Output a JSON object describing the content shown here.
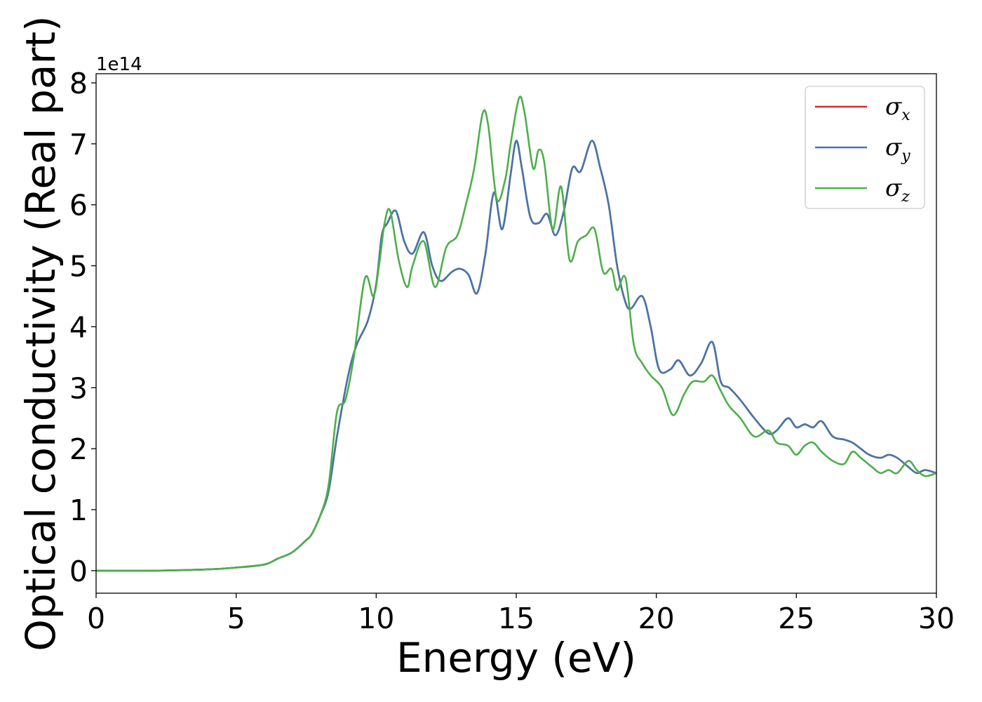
{
  "chart_data": {
    "type": "line",
    "title": "",
    "xlabel": "Energy (eV)",
    "ylabel": "Optical conductivity (Real part)",
    "y_offset_label": "1e14",
    "xlim": [
      0,
      30
    ],
    "ylim": [
      -0.37,
      8.15
    ],
    "x_ticks": [
      0,
      5,
      10,
      15,
      20,
      25,
      30
    ],
    "x_tick_labels": [
      "0",
      "5",
      "10",
      "15",
      "20",
      "25",
      "30"
    ],
    "y_ticks": [
      0,
      1,
      2,
      3,
      4,
      5,
      6,
      7,
      8
    ],
    "y_tick_labels": [
      "0",
      "1",
      "2",
      "3",
      "4",
      "5",
      "6",
      "7",
      "8"
    ],
    "grid": false,
    "legend_position": "top-right",
    "series": [
      {
        "name": "σx",
        "legend_symbol": "σ",
        "legend_subscript": "x",
        "color": "#d62728",
        "x": [
          0,
          2,
          4,
          5,
          6,
          6.5,
          7,
          7.5,
          7.7,
          8,
          8.3,
          8.6,
          9,
          9.3,
          9.7,
          10,
          10.2,
          10.4,
          10.7,
          11,
          11.3,
          11.7,
          12,
          12.3,
          12.7,
          13,
          13.3,
          13.6,
          13.9,
          14.2,
          14.5,
          14.8,
          15,
          15.2,
          15.5,
          15.8,
          16.1,
          16.4,
          16.7,
          17,
          17.3,
          17.7,
          18,
          18.3,
          18.6,
          18.9,
          19.1,
          19.5,
          19.8,
          20.1,
          20.5,
          20.8,
          21.2,
          21.6,
          22,
          22.3,
          22.6,
          23,
          23.5,
          24,
          24.3,
          24.7,
          25,
          25.3,
          25.6,
          25.9,
          26.3,
          26.7,
          27,
          27.3,
          27.6,
          28,
          28.3,
          28.6,
          29,
          29.3,
          29.6,
          30
        ],
        "y": [
          0,
          0,
          0.02,
          0.05,
          0.1,
          0.2,
          0.3,
          0.5,
          0.6,
          0.9,
          1.3,
          2.2,
          3.2,
          3.7,
          4.1,
          4.7,
          5.5,
          5.7,
          5.9,
          5.4,
          5.2,
          5.55,
          5.0,
          4.75,
          4.9,
          4.95,
          4.85,
          4.55,
          5.2,
          6.2,
          5.6,
          6.5,
          7.05,
          6.6,
          5.8,
          5.7,
          5.85,
          5.5,
          5.9,
          6.6,
          6.55,
          7.05,
          6.6,
          6.0,
          5.0,
          4.4,
          4.3,
          4.5,
          4.0,
          3.3,
          3.3,
          3.45,
          3.2,
          3.4,
          3.75,
          3.1,
          3.0,
          2.8,
          2.5,
          2.25,
          2.3,
          2.5,
          2.35,
          2.4,
          2.35,
          2.45,
          2.2,
          2.15,
          2.1,
          2.0,
          1.9,
          1.85,
          1.9,
          1.85,
          1.7,
          1.6,
          1.65,
          1.6
        ]
      },
      {
        "name": "σy",
        "legend_symbol": "σ",
        "legend_subscript": "y",
        "color": "#4477aa",
        "x": [
          0,
          2,
          4,
          5,
          6,
          6.5,
          7,
          7.5,
          7.7,
          8,
          8.3,
          8.6,
          9,
          9.3,
          9.7,
          10,
          10.2,
          10.4,
          10.7,
          11,
          11.3,
          11.7,
          12,
          12.3,
          12.7,
          13,
          13.3,
          13.6,
          13.9,
          14.2,
          14.5,
          14.8,
          15,
          15.2,
          15.5,
          15.8,
          16.1,
          16.4,
          16.7,
          17,
          17.3,
          17.7,
          18,
          18.3,
          18.6,
          18.9,
          19.1,
          19.5,
          19.8,
          20.1,
          20.5,
          20.8,
          21.2,
          21.6,
          22,
          22.3,
          22.6,
          23,
          23.5,
          24,
          24.3,
          24.7,
          25,
          25.3,
          25.6,
          25.9,
          26.3,
          26.7,
          27,
          27.3,
          27.6,
          28,
          28.3,
          28.6,
          29,
          29.3,
          29.6,
          30
        ],
        "y": [
          0,
          0,
          0.02,
          0.05,
          0.1,
          0.2,
          0.3,
          0.5,
          0.6,
          0.9,
          1.3,
          2.2,
          3.2,
          3.7,
          4.1,
          4.7,
          5.5,
          5.7,
          5.9,
          5.4,
          5.2,
          5.55,
          5.0,
          4.75,
          4.9,
          4.95,
          4.85,
          4.55,
          5.2,
          6.2,
          5.6,
          6.5,
          7.05,
          6.6,
          5.8,
          5.7,
          5.85,
          5.5,
          5.9,
          6.6,
          6.55,
          7.05,
          6.6,
          6.0,
          5.0,
          4.4,
          4.3,
          4.5,
          4.0,
          3.3,
          3.3,
          3.45,
          3.2,
          3.4,
          3.75,
          3.1,
          3.0,
          2.8,
          2.5,
          2.25,
          2.3,
          2.5,
          2.35,
          2.4,
          2.35,
          2.45,
          2.2,
          2.15,
          2.1,
          2.0,
          1.9,
          1.85,
          1.9,
          1.85,
          1.7,
          1.6,
          1.65,
          1.6
        ]
      },
      {
        "name": "σz",
        "legend_symbol": "σ",
        "legend_subscript": "z",
        "color": "#4daf4a",
        "x": [
          0,
          2,
          4,
          5,
          6,
          6.5,
          7,
          7.5,
          7.7,
          8,
          8.3,
          8.6,
          8.9,
          9.2,
          9.6,
          9.9,
          10.1,
          10.3,
          10.5,
          10.8,
          11.1,
          11.3,
          11.7,
          12.1,
          12.5,
          12.9,
          13.2,
          13.5,
          13.8,
          14.0,
          14.3,
          14.6,
          14.8,
          15.1,
          15.3,
          15.6,
          15.8,
          16.0,
          16.3,
          16.6,
          16.9,
          17.2,
          17.5,
          17.8,
          18.1,
          18.4,
          18.6,
          18.9,
          19.2,
          19.5,
          19.8,
          20.2,
          20.6,
          21.0,
          21.3,
          21.7,
          22.0,
          22.3,
          22.6,
          23.0,
          23.5,
          24.0,
          24.3,
          24.7,
          25.0,
          25.3,
          25.6,
          25.9,
          26.3,
          26.7,
          27.0,
          27.3,
          27.7,
          28.0,
          28.3,
          28.6,
          29.0,
          29.3,
          29.6,
          30
        ],
        "y": [
          0,
          0,
          0.02,
          0.05,
          0.1,
          0.2,
          0.3,
          0.5,
          0.6,
          0.9,
          1.4,
          2.6,
          2.8,
          3.5,
          4.8,
          4.5,
          5.0,
          5.7,
          5.9,
          5.1,
          4.65,
          5.0,
          5.4,
          4.65,
          5.3,
          5.5,
          6.0,
          6.6,
          7.5,
          7.3,
          6.1,
          6.4,
          7.0,
          7.75,
          7.5,
          6.6,
          6.9,
          6.7,
          5.6,
          6.3,
          5.1,
          5.4,
          5.5,
          5.6,
          4.9,
          4.95,
          4.6,
          4.8,
          3.7,
          3.4,
          3.2,
          3.0,
          2.55,
          2.9,
          3.1,
          3.1,
          3.2,
          2.95,
          2.7,
          2.5,
          2.2,
          2.3,
          2.1,
          2.05,
          1.9,
          2.05,
          2.1,
          1.95,
          1.8,
          1.75,
          1.95,
          1.85,
          1.7,
          1.6,
          1.65,
          1.6,
          1.8,
          1.65,
          1.55,
          1.6
        ]
      }
    ]
  }
}
